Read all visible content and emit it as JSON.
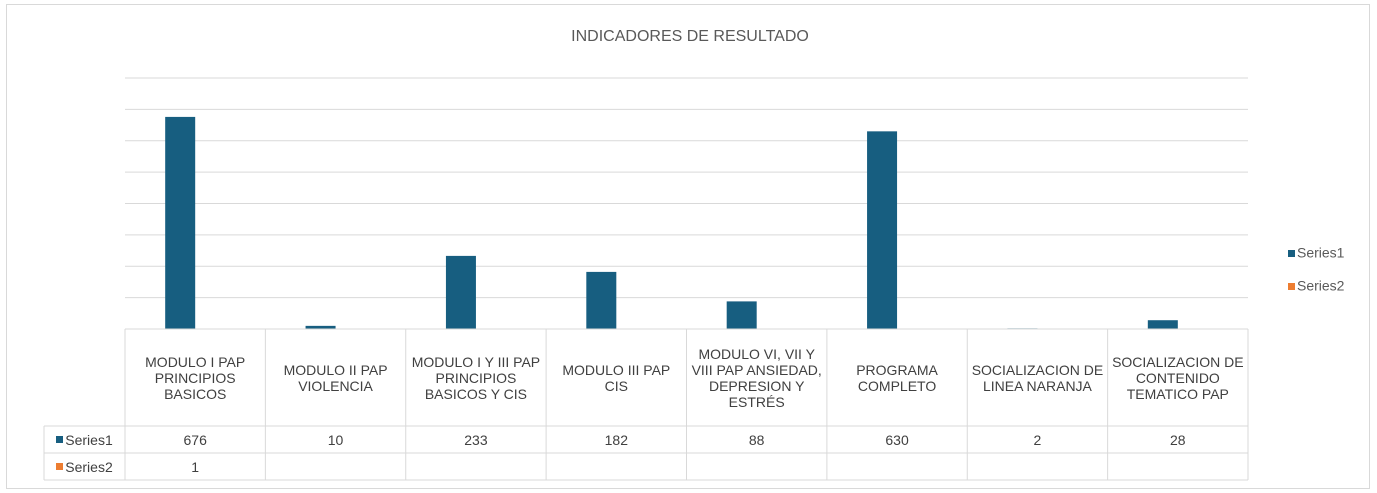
{
  "chart_data": {
    "type": "bar",
    "title": "INDICADORES DE RESULTADO",
    "categories": [
      "MODULO I PAP PRINCIPIOS BASICOS",
      "MODULO II PAP VIOLENCIA",
      "MODULO I Y III PAP PRINCIPIOS BASICOS Y CIS",
      "MODULO III PAP CIS",
      "MODULO VI, VII Y VIII PAP ANSIEDAD, DEPRESION Y ESTRÉS",
      "PROGRAMA COMPLETO",
      "SOCIALIZACION DE LINEA NARANJA",
      "SOCIALIZACION DE CONTENIDO TEMATICO PAP"
    ],
    "series": [
      {
        "name": "Series1",
        "color": "#175e80",
        "values": [
          676,
          10,
          233,
          182,
          88,
          630,
          2,
          28
        ]
      },
      {
        "name": "Series2",
        "color": "#ed7d31",
        "values": [
          1,
          null,
          null,
          null,
          null,
          null,
          null,
          null
        ]
      }
    ],
    "ylim": [
      0,
      800
    ],
    "yticks": [
      0,
      100,
      200,
      300,
      400,
      500,
      600,
      700,
      800
    ],
    "grid": true,
    "legend": "right",
    "data_table": true
  }
}
